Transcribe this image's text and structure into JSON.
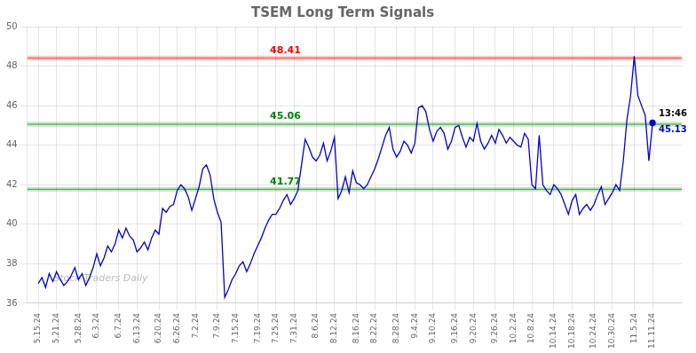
{
  "chart_data": {
    "type": "line",
    "title": "TSEM Long Term Signals",
    "watermark": "Stock Traders Daily",
    "categories": [
      "5.15.24",
      null,
      null,
      null,
      null,
      "5.21.24",
      null,
      null,
      null,
      null,
      null,
      "5.28.24",
      null,
      null,
      null,
      null,
      "6.3.24",
      null,
      null,
      null,
      null,
      null,
      "6.7.24",
      null,
      null,
      null,
      null,
      "6.13.24",
      null,
      null,
      null,
      null,
      null,
      "6.20.24",
      null,
      null,
      null,
      null,
      "6.26.24",
      null,
      null,
      null,
      null,
      "7.2.24",
      null,
      null,
      null,
      null,
      null,
      "7.9.24",
      null,
      null,
      null,
      null,
      "7.15.24",
      null,
      null,
      null,
      null,
      null,
      "7.19.24",
      null,
      null,
      null,
      null,
      "7.25.24",
      null,
      null,
      null,
      null,
      "7.31.24",
      null,
      null,
      null,
      null,
      null,
      "8.6.24",
      null,
      null,
      null,
      null,
      "8.12.24",
      null,
      null,
      null,
      null,
      null,
      "8.16.24",
      null,
      null,
      null,
      null,
      "8.22.24",
      null,
      null,
      null,
      null,
      null,
      "8.28.24",
      null,
      null,
      null,
      null,
      "9.4.24",
      null,
      null,
      null,
      null,
      "9.10.24",
      null,
      null,
      null,
      null,
      null,
      "9.16.24",
      null,
      null,
      null,
      null,
      "9.20.24",
      null,
      null,
      null,
      null,
      null,
      "9.26.24",
      null,
      null,
      null,
      null,
      "10.2.24",
      null,
      null,
      null,
      null,
      "10.8.24",
      null,
      null,
      null,
      null,
      null,
      "10.14.24",
      null,
      null,
      null,
      null,
      "10.18.24",
      null,
      null,
      null,
      null,
      null,
      "10.24.24",
      null,
      null,
      null,
      null,
      "10.30.24",
      null,
      null,
      null,
      null,
      null,
      "11.5.24",
      null,
      null,
      null,
      null,
      "11.11.24"
    ],
    "values": [
      37.0,
      37.3,
      36.8,
      37.5,
      37.1,
      37.6,
      37.2,
      36.9,
      37.1,
      37.4,
      37.8,
      37.2,
      37.5,
      36.9,
      37.3,
      37.8,
      38.5,
      37.9,
      38.3,
      38.9,
      38.6,
      39.0,
      39.7,
      39.3,
      39.8,
      39.4,
      39.2,
      38.6,
      38.8,
      39.1,
      38.7,
      39.3,
      39.7,
      39.5,
      40.8,
      40.6,
      40.9,
      41.0,
      41.7,
      42.0,
      41.8,
      41.4,
      40.7,
      41.3,
      41.9,
      42.8,
      43.0,
      42.5,
      41.3,
      40.6,
      40.1,
      36.3,
      36.7,
      37.2,
      37.5,
      37.9,
      38.1,
      37.6,
      38.0,
      38.5,
      38.9,
      39.3,
      39.8,
      40.2,
      40.5,
      40.5,
      40.8,
      41.2,
      41.5,
      41.0,
      41.3,
      41.7,
      43.0,
      44.3,
      43.9,
      43.4,
      43.2,
      43.5,
      44.1,
      43.2,
      43.7,
      44.4,
      41.3,
      41.7,
      42.4,
      41.6,
      42.7,
      42.1,
      42.0,
      41.8,
      42.0,
      42.4,
      42.8,
      43.3,
      43.9,
      44.5,
      44.9,
      43.8,
      43.4,
      43.7,
      44.2,
      44.0,
      43.6,
      44.1,
      45.9,
      46.0,
      45.7,
      44.8,
      44.2,
      44.7,
      44.9,
      44.6,
      43.8,
      44.2,
      44.9,
      45.0,
      44.4,
      43.9,
      44.4,
      44.2,
      45.1,
      44.2,
      43.8,
      44.1,
      44.5,
      44.1,
      44.8,
      44.5,
      44.1,
      44.4,
      44.2,
      44.0,
      43.9,
      44.6,
      44.3,
      42.0,
      41.8,
      44.5,
      42.0,
      41.7,
      41.5,
      42.0,
      41.8,
      41.5,
      41.0,
      40.5,
      41.2,
      41.5,
      40.5,
      40.8,
      41.0,
      40.7,
      41.0,
      41.5,
      41.9,
      41.0,
      41.3,
      41.6,
      42.0,
      41.7,
      43.2,
      45.3,
      46.5,
      48.5,
      46.5,
      46.0,
      45.5,
      43.2,
      45.13
    ],
    "color": "#0000cc",
    "reference_lines": [
      {
        "value": 48.41,
        "label": "48.41",
        "color": "red"
      },
      {
        "value": 45.06,
        "label": "45.06",
        "color": "green"
      },
      {
        "value": 41.77,
        "label": "41.77",
        "color": "green"
      }
    ],
    "annotations": [
      {
        "text": "13:46"
      },
      {
        "text": "45.13"
      }
    ],
    "ylim": [
      36,
      50
    ],
    "yticks": [
      36,
      38,
      40,
      42,
      44,
      46,
      48,
      50
    ],
    "grid": true
  }
}
